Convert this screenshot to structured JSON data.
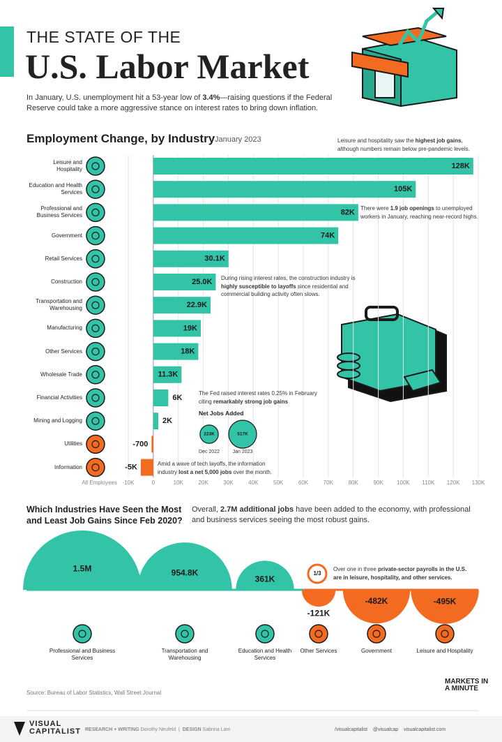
{
  "header": {
    "title_top": "THE STATE OF THE",
    "title_main": "U.S. Labor Market",
    "intro": {
      "parts": [
        "In January, U.S. unemployment hit a 53-year low of ",
        "3.4%",
        "—raising questions if the Federal Reserve could take a more aggressive stance on interest rates to bring down inflation."
      ]
    }
  },
  "chart_data": [
    {
      "type": "bar",
      "title": "Employment Change, by Industry",
      "subtitle": "January 2023",
      "x_label": "All Employees",
      "categories": [
        "Leisure and Hospitality",
        "Education and Health Services",
        "Professional and Business Services",
        "Government",
        "Retail Services",
        "Construction",
        "Transportation and Warehousing",
        "Manufacturing",
        "Other Services",
        "Wholesale Trade",
        "Financial Activities",
        "Mining and Logging",
        "Utilities",
        "Information"
      ],
      "values": [
        128000,
        105000,
        82000,
        74000,
        30100,
        25000,
        22900,
        19000,
        18000,
        11300,
        6000,
        2000,
        -700,
        -5000
      ],
      "value_labels": [
        "128K",
        "105K",
        "82K",
        "74K",
        "30.1K",
        "25.0K",
        "22.9K",
        "19K",
        "18K",
        "11.3K",
        "6K",
        "2K",
        "-700",
        "-5K"
      ],
      "color": "#33c4a7",
      "negative_color": "#f26b21",
      "xlim": [
        -10000,
        130000
      ],
      "xticks": [
        {
          "value": -10000,
          "label": "-10K"
        },
        0,
        {
          "value": 10000,
          "label": "10K"
        },
        {
          "value": 20000,
          "label": "20K"
        },
        {
          "value": 30000,
          "label": "30K"
        },
        {
          "value": 40000,
          "label": "40K"
        },
        {
          "value": 50000,
          "label": "50K"
        },
        {
          "value": 60000,
          "label": "60K"
        },
        {
          "value": 70000,
          "label": "70K"
        },
        {
          "value": 80000,
          "label": "80K"
        },
        {
          "value": 90000,
          "label": "90K"
        },
        {
          "value": 100000,
          "label": "100K"
        },
        {
          "value": 110000,
          "label": "110K"
        },
        {
          "value": 120000,
          "label": "120K"
        },
        {
          "value": 130000,
          "label": "130K"
        }
      ],
      "grid": true,
      "annotations": [
        {
          "parts": [
            "Leisure and hospitality saw the ",
            "highest job gains",
            ", although numbers remain below pre-pandemic levels."
          ]
        },
        {
          "parts": [
            "There were ",
            "1.9 job openings",
            " to unemployed workers in January, reaching near-record highs."
          ]
        },
        {
          "parts": [
            "During rising interest rates, the construction industry is ",
            "highly susceptible to layoffs",
            " since residential and commercial building activity often slows."
          ]
        },
        {
          "parts": [
            "The Fed raised interest rates 0.25% in February citing ",
            "remarkably strong job gains"
          ]
        },
        {
          "parts": [
            "Amid a wave of tech layoffs, the information industry ",
            "lost a net 5,000 jobs",
            " over the month."
          ]
        }
      ]
    },
    {
      "type": "bubble",
      "title": "Net Jobs Added",
      "categories": [
        "Dec 2022",
        "Jan 2023"
      ],
      "values": [
        223000,
        517000
      ],
      "value_labels": [
        "223K",
        "517K"
      ],
      "color": "#33c4a7"
    },
    {
      "type": "semicircle",
      "title": "Which Industries Have Seen the Most and Least Job Gains Since Feb 2020?",
      "description": {
        "parts": [
          "Overall, ",
          "2.7M additional jobs",
          " have been added to the economy, with professional and business services seeing the most robust gains."
        ]
      },
      "categories": [
        "Professional and Business Services",
        "Transportation and Warehousing",
        "Education and Health Services",
        "Other Services",
        "Government",
        "Leisure and Hospitality"
      ],
      "values": [
        1500000,
        954800,
        361000,
        -121000,
        -482000,
        -495000
      ],
      "value_labels": [
        "1.5M",
        "954.8K",
        "361K",
        "-121K",
        "-482K",
        "-495K"
      ],
      "color": "#33c4a7",
      "negative_color": "#f26b21",
      "annotation": {
        "icon": "1/3",
        "parts": [
          "Over one in three",
          " private-sector payrolls in the U.S. are in leisure, hospitality, and other services."
        ]
      }
    }
  ],
  "source": "Source: Bureau of Labor Statistics, Wall Street Journal",
  "badge": "MARKETS IN A MINUTE",
  "footer": {
    "logo_top": "VISUAL",
    "logo_bottom": "CAPITALIST",
    "research_label": "RESEARCH + WRITING",
    "research_name": "Dorothy Neufeld",
    "design_label": "DESIGN",
    "design_name": "Sabrina Lam",
    "social": [
      "/visualcapitalist",
      "@visualcap",
      "visualcapitalist.com"
    ]
  }
}
